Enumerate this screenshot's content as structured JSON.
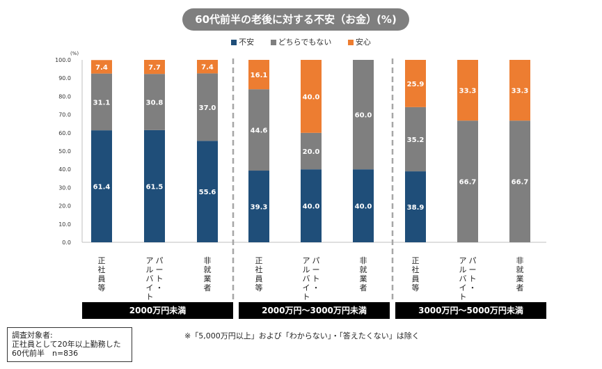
{
  "chart_data": {
    "type": "bar",
    "stacked": true,
    "title": "60代前半の老後に対する不安（お金）(%)",
    "ylabel": "(%)",
    "ylim": [
      0,
      100
    ],
    "yticks": [
      "0.0",
      "10.0",
      "20.0",
      "30.0",
      "40.0",
      "50.0",
      "60.0",
      "70.0",
      "80.0",
      "90.0",
      "100.0"
    ],
    "categories": [
      "正社員等",
      "パート・アルバイト",
      "非就業者",
      "正社員等",
      "パート・アルバイト",
      "非就業者",
      "正社員等",
      "パート・アルバイト",
      "非就業者"
    ],
    "category_lines": [
      [
        "正",
        "社",
        "員",
        "等"
      ],
      [
        "パ",
        "ー",
        "ト",
        "・"
      ],
      [
        "非",
        "就",
        "業",
        "者"
      ],
      [
        "正",
        "社",
        "員",
        "等"
      ],
      [
        "パ",
        "ー",
        "ト",
        "・"
      ],
      [
        "非",
        "就",
        "業",
        "者"
      ],
      [
        "正",
        "社",
        "員",
        "等"
      ],
      [
        "パ",
        "ー",
        "ト",
        "・"
      ],
      [
        "非",
        "就",
        "業",
        "者"
      ]
    ],
    "category_lines_2": [
      [],
      [
        "ア",
        "ル",
        "バ",
        "イ",
        "ト"
      ],
      [],
      [],
      [
        "ア",
        "ル",
        "バ",
        "イ",
        "ト"
      ],
      [],
      [],
      [
        "ア",
        "ル",
        "バ",
        "イ",
        "ト"
      ],
      []
    ],
    "groups": [
      "2000万円未満",
      "2000万円～3000万円未満",
      "3000万円～5000万円未満"
    ],
    "series": [
      {
        "name": "不安",
        "color": "#1f4e79",
        "values": [
          61.4,
          61.5,
          55.6,
          39.3,
          40.0,
          40.0,
          38.9,
          0,
          0
        ],
        "labels": [
          "61.4",
          "61.5",
          "55.6",
          "39.3",
          "40.0",
          "40.0",
          "38.9",
          "",
          ""
        ]
      },
      {
        "name": "どちらでもない",
        "color": "#7f7f7f",
        "values": [
          31.1,
          30.8,
          37.0,
          44.6,
          20.0,
          60.0,
          35.2,
          66.7,
          66.7
        ],
        "labels": [
          "31.1",
          "30.8",
          "37.0",
          "44.6",
          "20.0",
          "60.0",
          "35.2",
          "66.7",
          "66.7"
        ]
      },
      {
        "name": "安心",
        "color": "#ed7d31",
        "values": [
          7.4,
          7.7,
          7.4,
          16.1,
          40.0,
          0,
          25.9,
          33.3,
          33.3
        ],
        "labels": [
          "7.4",
          "7.7",
          "7.4",
          "16.1",
          "40.0",
          "",
          "25.9",
          "33.3",
          "33.3"
        ]
      }
    ]
  },
  "note": "※「5,000万円以上」および「わからない」・「答えたくない」は除く",
  "survey": {
    "label": "調査対象者:",
    "line1": "正社員として20年以上勤務した",
    "line2": "60代前半　n=836"
  }
}
